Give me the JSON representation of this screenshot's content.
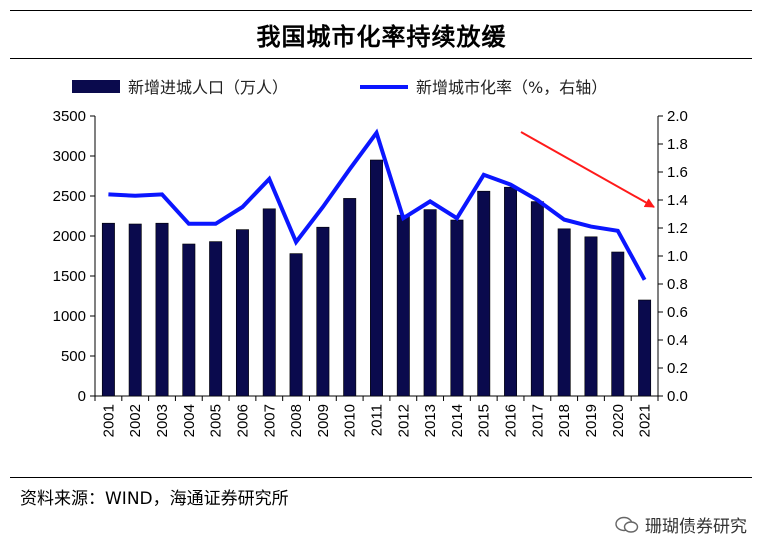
{
  "title": "我国城市化率持续放缓",
  "source": "资料来源：WIND，海通证券研究所",
  "watermark": "珊瑚债券研究",
  "colors": {
    "bar": "#0a0a4d",
    "line": "#0b16ff",
    "arrow": "#ff1a1a"
  },
  "chart_data": {
    "type": "bar",
    "categories": [
      "2001",
      "2002",
      "2003",
      "2004",
      "2005",
      "2006",
      "2007",
      "2008",
      "2009",
      "2010",
      "2011",
      "2012",
      "2013",
      "2014",
      "2015",
      "2016",
      "2017",
      "2018",
      "2019",
      "2020",
      "2021"
    ],
    "series": [
      {
        "name": "新增进城人口（万人）",
        "type": "bar",
        "axis": "left",
        "values": [
          2160,
          2150,
          2160,
          1900,
          1930,
          2080,
          2340,
          1780,
          2110,
          2470,
          2950,
          2260,
          2330,
          2200,
          2560,
          2610,
          2430,
          2090,
          1990,
          1800,
          1200
        ]
      },
      {
        "name": "新增城市化率（%，右轴）",
        "type": "line",
        "axis": "right",
        "values": [
          1.44,
          1.43,
          1.44,
          1.23,
          1.23,
          1.35,
          1.55,
          1.1,
          1.35,
          1.62,
          1.88,
          1.27,
          1.39,
          1.27,
          1.58,
          1.51,
          1.4,
          1.26,
          1.21,
          1.18,
          0.83
        ]
      }
    ],
    "y_left": {
      "min": 0,
      "max": 3500,
      "ticks": [
        "0",
        "500",
        "1000",
        "1500",
        "2000",
        "2500",
        "3000",
        "3500"
      ]
    },
    "y_right": {
      "min": 0,
      "max": 2.0,
      "ticks": [
        "0.0",
        "0.2",
        "0.4",
        "0.6",
        "0.8",
        "1.0",
        "1.2",
        "1.4",
        "1.6",
        "1.8",
        "2.0"
      ]
    },
    "legend": [
      {
        "label": "新增进城人口（万人）",
        "kind": "bar"
      },
      {
        "label": "新增城市化率（%，右轴）",
        "kind": "line"
      }
    ],
    "annotation": {
      "type": "arrow",
      "meaning": "downtrend"
    }
  }
}
